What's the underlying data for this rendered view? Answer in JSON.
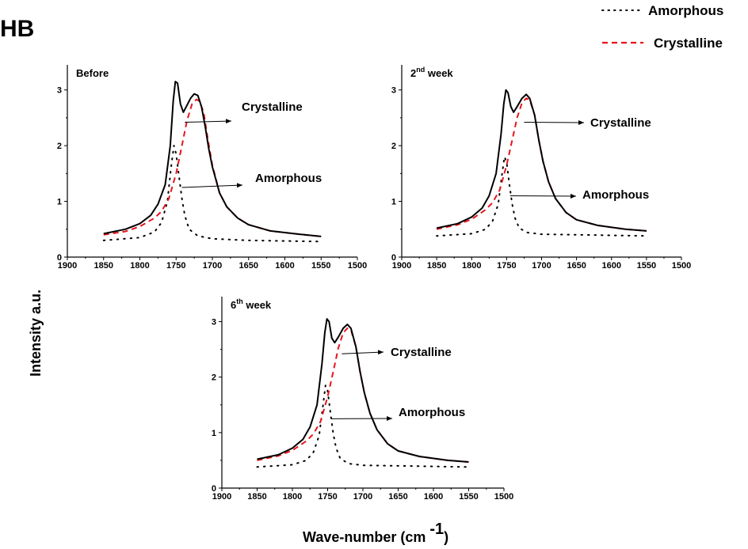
{
  "figure": {
    "corner_label": "HB",
    "y_title": "Intensity a.u.",
    "x_title_main": "Wave-number (cm ",
    "x_title_exp": "-1",
    "x_title_close": ")"
  },
  "legend": {
    "placement": "top-right",
    "items": [
      {
        "label": "Amorphous",
        "style": "dotted",
        "color": "#000000"
      },
      {
        "label": "Crystalline",
        "style": "dashed",
        "color": "#e8141c"
      }
    ]
  },
  "colors": {
    "total": "#000000",
    "crystalline": "#e8141c",
    "amorphous": "#000000"
  },
  "chart_data": [
    {
      "type": "line",
      "label_main": "Before",
      "label_sup": "",
      "x_range": [
        1900,
        1500
      ],
      "y_range": [
        0,
        3.45
      ],
      "x_ticks": [
        1900,
        1850,
        1800,
        1750,
        1700,
        1650,
        1600,
        1550,
        1500
      ],
      "y_ticks": [
        0,
        1,
        2,
        3
      ],
      "series": [
        {
          "key": "total",
          "style": "solid",
          "points": [
            [
              1850,
              0.42
            ],
            [
              1820,
              0.5
            ],
            [
              1800,
              0.6
            ],
            [
              1785,
              0.75
            ],
            [
              1775,
              0.95
            ],
            [
              1765,
              1.3
            ],
            [
              1758,
              2.0
            ],
            [
              1754,
              2.8
            ],
            [
              1751,
              3.15
            ],
            [
              1748,
              3.12
            ],
            [
              1744,
              2.75
            ],
            [
              1740,
              2.6
            ],
            [
              1736,
              2.7
            ],
            [
              1730,
              2.85
            ],
            [
              1725,
              2.93
            ],
            [
              1720,
              2.9
            ],
            [
              1715,
              2.7
            ],
            [
              1710,
              2.35
            ],
            [
              1705,
              1.95
            ],
            [
              1700,
              1.62
            ],
            [
              1690,
              1.15
            ],
            [
              1680,
              0.9
            ],
            [
              1665,
              0.7
            ],
            [
              1650,
              0.58
            ],
            [
              1620,
              0.47
            ],
            [
              1580,
              0.41
            ],
            [
              1550,
              0.37
            ]
          ]
        },
        {
          "key": "crystalline",
          "style": "dashed",
          "points": [
            [
              1850,
              0.4
            ],
            [
              1820,
              0.46
            ],
            [
              1800,
              0.55
            ],
            [
              1780,
              0.7
            ],
            [
              1770,
              0.82
            ],
            [
              1760,
              1.05
            ],
            [
              1750,
              1.5
            ],
            [
              1742,
              2.0
            ],
            [
              1735,
              2.45
            ],
            [
              1728,
              2.75
            ],
            [
              1722,
              2.83
            ],
            [
              1718,
              2.8
            ],
            [
              1712,
              2.6
            ],
            [
              1706,
              2.1
            ],
            [
              1700,
              1.65
            ],
            [
              1690,
              1.15
            ],
            [
              1680,
              0.9
            ],
            [
              1665,
              0.7
            ],
            [
              1650,
              0.58
            ],
            [
              1620,
              0.47
            ],
            [
              1580,
              0.41
            ],
            [
              1550,
              0.37
            ]
          ]
        },
        {
          "key": "amorphous",
          "style": "dotted",
          "points": [
            [
              1850,
              0.3
            ],
            [
              1800,
              0.35
            ],
            [
              1780,
              0.45
            ],
            [
              1770,
              0.62
            ],
            [
              1762,
              1.0
            ],
            [
              1757,
              1.6
            ],
            [
              1753,
              2.0
            ],
            [
              1750,
              1.85
            ],
            [
              1746,
              1.45
            ],
            [
              1742,
              1.05
            ],
            [
              1738,
              0.75
            ],
            [
              1732,
              0.5
            ],
            [
              1720,
              0.38
            ],
            [
              1700,
              0.33
            ],
            [
              1650,
              0.3
            ],
            [
              1600,
              0.29
            ],
            [
              1550,
              0.28
            ]
          ]
        }
      ],
      "annotations": [
        {
          "text": "Crystalline",
          "anchor": "crystalline",
          "x": 1738,
          "y": 2.42
        },
        {
          "text": "Amorphous",
          "anchor": "amorphous",
          "x": 1742,
          "y": 1.25
        }
      ]
    },
    {
      "type": "line",
      "label_main": "2",
      "label_sup": "nd",
      "label_rest": " week",
      "x_range": [
        1900,
        1500
      ],
      "y_range": [
        0,
        3.45
      ],
      "x_ticks": [
        1900,
        1850,
        1800,
        1750,
        1700,
        1650,
        1600,
        1550,
        1500
      ],
      "y_ticks": [
        0,
        1,
        2,
        3
      ],
      "series": [
        {
          "key": "total",
          "style": "solid",
          "points": [
            [
              1850,
              0.52
            ],
            [
              1820,
              0.6
            ],
            [
              1800,
              0.72
            ],
            [
              1785,
              0.88
            ],
            [
              1775,
              1.1
            ],
            [
              1765,
              1.5
            ],
            [
              1758,
              2.2
            ],
            [
              1754,
              2.75
            ],
            [
              1751,
              3.0
            ],
            [
              1748,
              2.95
            ],
            [
              1744,
              2.7
            ],
            [
              1740,
              2.6
            ],
            [
              1735,
              2.7
            ],
            [
              1728,
              2.85
            ],
            [
              1722,
              2.92
            ],
            [
              1717,
              2.85
            ],
            [
              1710,
              2.55
            ],
            [
              1704,
              2.1
            ],
            [
              1698,
              1.72
            ],
            [
              1690,
              1.35
            ],
            [
              1680,
              1.05
            ],
            [
              1665,
              0.8
            ],
            [
              1650,
              0.67
            ],
            [
              1620,
              0.57
            ],
            [
              1580,
              0.5
            ],
            [
              1550,
              0.47
            ]
          ]
        },
        {
          "key": "crystalline",
          "style": "dashed",
          "points": [
            [
              1850,
              0.5
            ],
            [
              1820,
              0.58
            ],
            [
              1800,
              0.68
            ],
            [
              1780,
              0.85
            ],
            [
              1770,
              0.98
            ],
            [
              1760,
              1.2
            ],
            [
              1750,
              1.65
            ],
            [
              1742,
              2.1
            ],
            [
              1735,
              2.5
            ],
            [
              1728,
              2.77
            ],
            [
              1722,
              2.85
            ],
            [
              1717,
              2.82
            ],
            [
              1710,
              2.55
            ],
            [
              1704,
              2.1
            ],
            [
              1698,
              1.72
            ],
            [
              1690,
              1.35
            ],
            [
              1680,
              1.05
            ],
            [
              1665,
              0.8
            ],
            [
              1650,
              0.67
            ],
            [
              1620,
              0.57
            ],
            [
              1580,
              0.5
            ],
            [
              1550,
              0.47
            ]
          ]
        },
        {
          "key": "amorphous",
          "style": "dotted",
          "points": [
            [
              1850,
              0.38
            ],
            [
              1800,
              0.42
            ],
            [
              1780,
              0.5
            ],
            [
              1770,
              0.65
            ],
            [
              1762,
              0.95
            ],
            [
              1757,
              1.45
            ],
            [
              1753,
              1.8
            ],
            [
              1750,
              1.7
            ],
            [
              1746,
              1.3
            ],
            [
              1742,
              0.95
            ],
            [
              1738,
              0.7
            ],
            [
              1732,
              0.52
            ],
            [
              1720,
              0.44
            ],
            [
              1700,
              0.41
            ],
            [
              1650,
              0.4
            ],
            [
              1600,
              0.39
            ],
            [
              1550,
              0.38
            ]
          ]
        }
      ],
      "annotations": [
        {
          "text": "Crystalline",
          "anchor": "crystalline",
          "x": 1725,
          "y": 2.42
        },
        {
          "text": "Amorphous",
          "anchor": "amorphous",
          "x": 1745,
          "y": 1.1
        }
      ]
    },
    {
      "type": "line",
      "label_main": "6",
      "label_sup": "th",
      "label_rest": " week",
      "x_range": [
        1900,
        1500
      ],
      "y_range": [
        0,
        3.45
      ],
      "x_ticks": [
        1900,
        1850,
        1800,
        1750,
        1700,
        1650,
        1600,
        1550,
        1500
      ],
      "y_ticks": [
        0,
        1,
        2,
        3
      ],
      "series": [
        {
          "key": "total",
          "style": "solid",
          "points": [
            [
              1850,
              0.52
            ],
            [
              1820,
              0.6
            ],
            [
              1800,
              0.72
            ],
            [
              1785,
              0.88
            ],
            [
              1775,
              1.1
            ],
            [
              1765,
              1.5
            ],
            [
              1758,
              2.25
            ],
            [
              1754,
              2.8
            ],
            [
              1751,
              3.05
            ],
            [
              1748,
              3.0
            ],
            [
              1744,
              2.7
            ],
            [
              1740,
              2.62
            ],
            [
              1735,
              2.72
            ],
            [
              1728,
              2.88
            ],
            [
              1722,
              2.95
            ],
            [
              1717,
              2.88
            ],
            [
              1710,
              2.55
            ],
            [
              1704,
              2.1
            ],
            [
              1698,
              1.72
            ],
            [
              1690,
              1.35
            ],
            [
              1680,
              1.05
            ],
            [
              1665,
              0.8
            ],
            [
              1650,
              0.67
            ],
            [
              1620,
              0.57
            ],
            [
              1580,
              0.5
            ],
            [
              1550,
              0.47
            ]
          ]
        },
        {
          "key": "crystalline",
          "style": "dashed",
          "points": [
            [
              1850,
              0.5
            ],
            [
              1820,
              0.58
            ],
            [
              1800,
              0.68
            ],
            [
              1780,
              0.85
            ],
            [
              1770,
              0.98
            ],
            [
              1760,
              1.2
            ],
            [
              1750,
              1.65
            ],
            [
              1742,
              2.1
            ],
            [
              1735,
              2.52
            ],
            [
              1728,
              2.8
            ],
            [
              1722,
              2.88
            ],
            [
              1717,
              2.85
            ],
            [
              1710,
              2.55
            ],
            [
              1704,
              2.1
            ],
            [
              1698,
              1.72
            ],
            [
              1690,
              1.35
            ],
            [
              1680,
              1.05
            ],
            [
              1665,
              0.8
            ],
            [
              1650,
              0.67
            ],
            [
              1620,
              0.57
            ],
            [
              1580,
              0.5
            ],
            [
              1550,
              0.47
            ]
          ]
        },
        {
          "key": "amorphous",
          "style": "dotted",
          "points": [
            [
              1850,
              0.38
            ],
            [
              1800,
              0.42
            ],
            [
              1780,
              0.5
            ],
            [
              1770,
              0.65
            ],
            [
              1762,
              0.95
            ],
            [
              1757,
              1.45
            ],
            [
              1753,
              1.85
            ],
            [
              1750,
              1.75
            ],
            [
              1746,
              1.35
            ],
            [
              1742,
              0.98
            ],
            [
              1738,
              0.72
            ],
            [
              1732,
              0.53
            ],
            [
              1720,
              0.44
            ],
            [
              1700,
              0.41
            ],
            [
              1650,
              0.4
            ],
            [
              1600,
              0.39
            ],
            [
              1550,
              0.38
            ]
          ]
        }
      ],
      "annotations": [
        {
          "text": "Crystalline",
          "anchor": "crystalline",
          "x": 1730,
          "y": 2.42
        },
        {
          "text": "Amorphous",
          "anchor": "amorphous",
          "x": 1745,
          "y": 1.25
        }
      ]
    }
  ]
}
